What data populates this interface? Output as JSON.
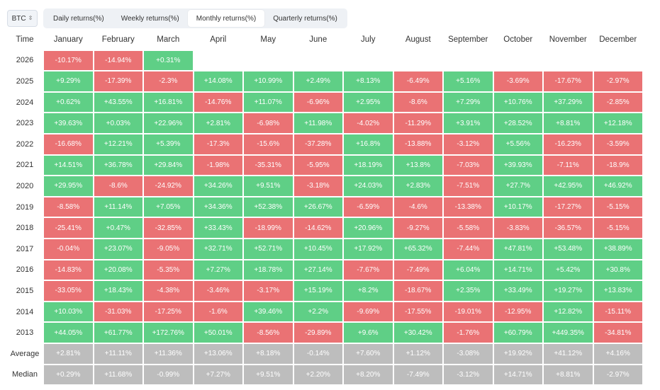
{
  "toolbar": {
    "asset_select": "BTC",
    "tabs": [
      "Daily returns(%)",
      "Weekly returns(%)",
      "Monthly returns(%)",
      "Quarterly returns(%)"
    ],
    "active_tab": 2
  },
  "colors": {
    "positive": "#5fcf86",
    "negative": "#ea7274",
    "summary": "#bdbdbd"
  },
  "table": {
    "corner_label": "Time",
    "months": [
      "January",
      "February",
      "March",
      "April",
      "May",
      "June",
      "July",
      "August",
      "September",
      "October",
      "November",
      "December"
    ],
    "rows": [
      {
        "label": "2026",
        "values": [
          "-10.17%",
          "-14.94%",
          "+0.31%"
        ]
      },
      {
        "label": "2025",
        "values": [
          "+9.29%",
          "-17.39%",
          "-2.3%",
          "+14.08%",
          "+10.99%",
          "+2.49%",
          "+8.13%",
          "-6.49%",
          "+5.16%",
          "-3.69%",
          "-17.67%",
          "-2.97%"
        ]
      },
      {
        "label": "2024",
        "values": [
          "+0.62%",
          "+43.55%",
          "+16.81%",
          "-14.76%",
          "+11.07%",
          "-6.96%",
          "+2.95%",
          "-8.6%",
          "+7.29%",
          "+10.76%",
          "+37.29%",
          "-2.85%"
        ]
      },
      {
        "label": "2023",
        "values": [
          "+39.63%",
          "+0.03%",
          "+22.96%",
          "+2.81%",
          "-6.98%",
          "+11.98%",
          "-4.02%",
          "-11.29%",
          "+3.91%",
          "+28.52%",
          "+8.81%",
          "+12.18%"
        ]
      },
      {
        "label": "2022",
        "values": [
          "-16.68%",
          "+12.21%",
          "+5.39%",
          "-17.3%",
          "-15.6%",
          "-37.28%",
          "+16.8%",
          "-13.88%",
          "-3.12%",
          "+5.56%",
          "-16.23%",
          "-3.59%"
        ]
      },
      {
        "label": "2021",
        "values": [
          "+14.51%",
          "+36.78%",
          "+29.84%",
          "-1.98%",
          "-35.31%",
          "-5.95%",
          "+18.19%",
          "+13.8%",
          "-7.03%",
          "+39.93%",
          "-7.11%",
          "-18.9%"
        ]
      },
      {
        "label": "2020",
        "values": [
          "+29.95%",
          "-8.6%",
          "-24.92%",
          "+34.26%",
          "+9.51%",
          "-3.18%",
          "+24.03%",
          "+2.83%",
          "-7.51%",
          "+27.7%",
          "+42.95%",
          "+46.92%"
        ]
      },
      {
        "label": "2019",
        "values": [
          "-8.58%",
          "+11.14%",
          "+7.05%",
          "+34.36%",
          "+52.38%",
          "+26.67%",
          "-6.59%",
          "-4.6%",
          "-13.38%",
          "+10.17%",
          "-17.27%",
          "-5.15%"
        ]
      },
      {
        "label": "2018",
        "values": [
          "-25.41%",
          "+0.47%",
          "-32.85%",
          "+33.43%",
          "-18.99%",
          "-14.62%",
          "+20.96%",
          "-9.27%",
          "-5.58%",
          "-3.83%",
          "-36.57%",
          "-5.15%"
        ]
      },
      {
        "label": "2017",
        "values": [
          "-0.04%",
          "+23.07%",
          "-9.05%",
          "+32.71%",
          "+52.71%",
          "+10.45%",
          "+17.92%",
          "+65.32%",
          "-7.44%",
          "+47.81%",
          "+53.48%",
          "+38.89%"
        ]
      },
      {
        "label": "2016",
        "values": [
          "-14.83%",
          "+20.08%",
          "-5.35%",
          "+7.27%",
          "+18.78%",
          "+27.14%",
          "-7.67%",
          "-7.49%",
          "+6.04%",
          "+14.71%",
          "+5.42%",
          "+30.8%"
        ]
      },
      {
        "label": "2015",
        "values": [
          "-33.05%",
          "+18.43%",
          "-4.38%",
          "-3.46%",
          "-3.17%",
          "+15.19%",
          "+8.2%",
          "-18.67%",
          "+2.35%",
          "+33.49%",
          "+19.27%",
          "+13.83%"
        ]
      },
      {
        "label": "2014",
        "values": [
          "+10.03%",
          "-31.03%",
          "-17.25%",
          "-1.6%",
          "+39.46%",
          "+2.2%",
          "-9.69%",
          "-17.55%",
          "-19.01%",
          "-12.95%",
          "+12.82%",
          "-15.11%"
        ]
      },
      {
        "label": "2013",
        "values": [
          "+44.05%",
          "+61.77%",
          "+172.76%",
          "+50.01%",
          "-8.56%",
          "-29.89%",
          "+9.6%",
          "+30.42%",
          "-1.76%",
          "+60.79%",
          "+449.35%",
          "-34.81%"
        ]
      }
    ],
    "summary_rows": [
      {
        "label": "Average",
        "values": [
          "+2.81%",
          "+11.11%",
          "+11.36%",
          "+13.06%",
          "+8.18%",
          "-0.14%",
          "+7.60%",
          "+1.12%",
          "-3.08%",
          "+19.92%",
          "+41.12%",
          "+4.16%"
        ]
      },
      {
        "label": "Median",
        "values": [
          "+0.29%",
          "+11.68%",
          "-0.99%",
          "+7.27%",
          "+9.51%",
          "+2.20%",
          "+8.20%",
          "-7.49%",
          "-3.12%",
          "+14.71%",
          "+8.81%",
          "-2.97%"
        ]
      }
    ]
  }
}
